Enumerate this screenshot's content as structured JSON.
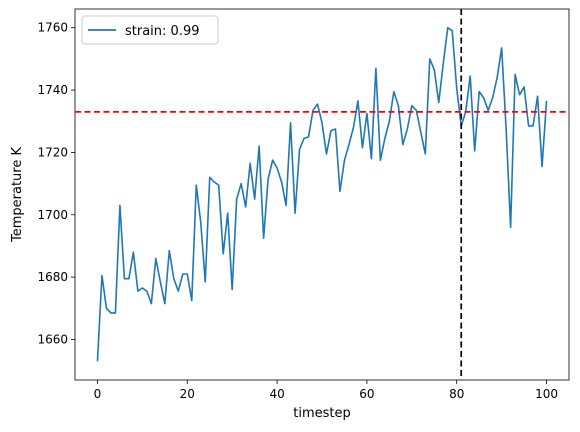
{
  "chart_data": {
    "type": "line",
    "title": "",
    "xlabel": "timestep",
    "ylabel": "Temperature K",
    "xlim": [
      -5,
      105
    ],
    "ylim": [
      1647,
      1766
    ],
    "xticks": [
      0,
      20,
      40,
      60,
      80,
      100
    ],
    "yticks": [
      1660,
      1680,
      1700,
      1720,
      1740,
      1760
    ],
    "grid": false,
    "legend_position": "top-left",
    "series": [
      {
        "name": "strain: 0.99",
        "color": "#1f77b4",
        "x": [
          0,
          1,
          2,
          3,
          4,
          5,
          6,
          7,
          8,
          9,
          10,
          11,
          12,
          13,
          14,
          15,
          16,
          17,
          18,
          19,
          20,
          21,
          22,
          23,
          24,
          25,
          26,
          27,
          28,
          29,
          30,
          31,
          32,
          33,
          34,
          35,
          36,
          37,
          38,
          39,
          40,
          41,
          42,
          43,
          44,
          45,
          46,
          47,
          48,
          49,
          50,
          51,
          52,
          53,
          54,
          55,
          56,
          57,
          58,
          59,
          60,
          61,
          62,
          63,
          64,
          65,
          66,
          67,
          68,
          69,
          70,
          71,
          72,
          73,
          74,
          75,
          76,
          77,
          78,
          79,
          80,
          81,
          82,
          83,
          84,
          85,
          86,
          87,
          88,
          89,
          90,
          91,
          92,
          93,
          94,
          95,
          96,
          97,
          98,
          99,
          100
        ],
        "values": [
          1653,
          1680.5,
          1670,
          1668.5,
          1668.5,
          1703,
          1679.5,
          1679.5,
          1688,
          1675.5,
          1676.5,
          1675.5,
          1671.5,
          1686,
          1678.5,
          1671.5,
          1688.5,
          1679.5,
          1675.5,
          1681,
          1681,
          1672.5,
          1709.5,
          1697.5,
          1678.5,
          1712,
          1710.5,
          1709.5,
          1687.5,
          1700.5,
          1676,
          1705,
          1710,
          1702.5,
          1716.5,
          1705,
          1722,
          1692.5,
          1711.5,
          1717.5,
          1715,
          1710.5,
          1703,
          1729.5,
          1700.5,
          1721,
          1724.5,
          1725,
          1733.5,
          1735.5,
          1729.5,
          1719.5,
          1727,
          1727.5,
          1707.5,
          1717.5,
          1722.5,
          1728,
          1736.5,
          1721.5,
          1732.5,
          1718,
          1747,
          1717.5,
          1724.5,
          1730,
          1739.5,
          1735,
          1722.5,
          1727.5,
          1735,
          1733.5,
          1726.5,
          1719.5,
          1750,
          1746.5,
          1736,
          1748.5,
          1760,
          1759,
          1740.5,
          1728.5,
          1733,
          1744.5,
          1720.5,
          1739.5,
          1737.5,
          1733.5,
          1737.5,
          1744,
          1753.5,
          1727.5,
          1696,
          1745,
          1738.5,
          1741,
          1728.5,
          1728.5,
          1738,
          1715.5,
          1736.5
        ]
      }
    ],
    "reference_lines": [
      {
        "orientation": "horizontal",
        "value": 1733,
        "color": "#ff0000",
        "style": "dashed"
      },
      {
        "orientation": "vertical",
        "value": 81,
        "color": "#000000",
        "style": "dashed"
      }
    ]
  }
}
